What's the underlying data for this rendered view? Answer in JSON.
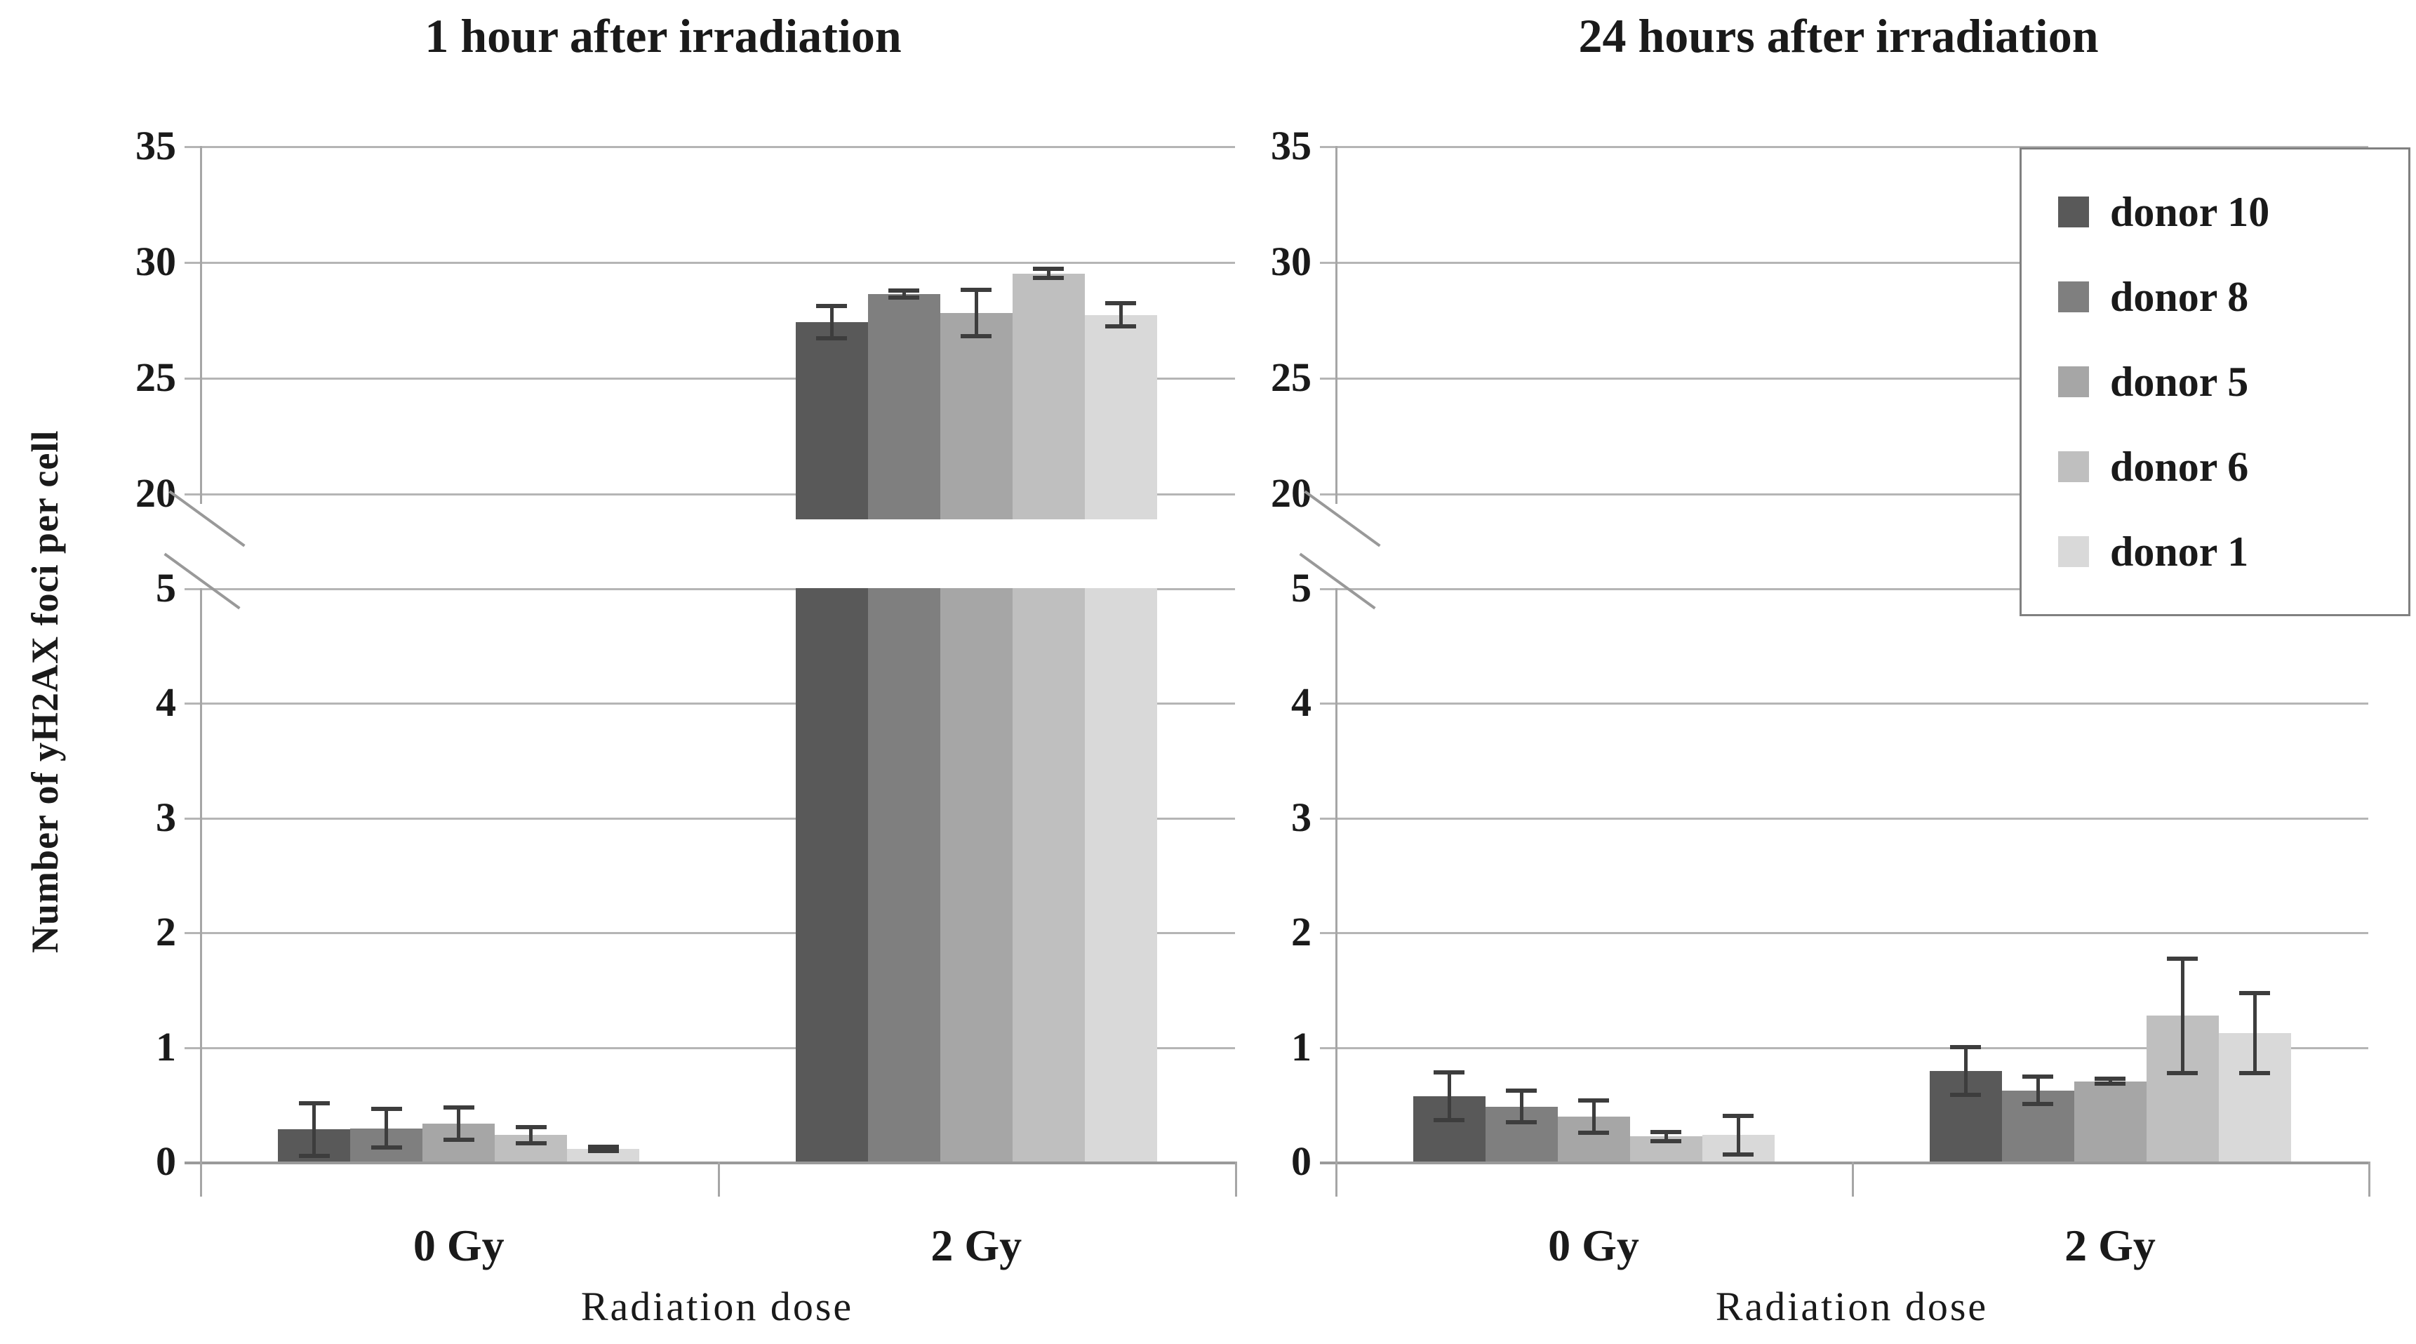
{
  "figure": {
    "y_axis_label": "Number of yH2AX foci per cell",
    "x_axis_label": "Radiation dose",
    "colors": {
      "grid": "#b5b5b5",
      "axis": "#a6a6a6",
      "error_bar": "#3d3d3d",
      "background": "#ffffff"
    }
  },
  "legend": {
    "position": "upper right",
    "items": [
      {
        "label": "donor 10",
        "color": "#595959"
      },
      {
        "label": "donor 8",
        "color": "#7f7f7f"
      },
      {
        "label": "donor 5",
        "color": "#a6a6a6"
      },
      {
        "label": "donor 6",
        "color": "#bfbfbf"
      },
      {
        "label": "donor 1",
        "color": "#d9d9d9"
      }
    ]
  },
  "chart_data": [
    {
      "type": "bar",
      "title": "1 hour after irradiation",
      "categories": [
        "0 Gy",
        "2 Gy"
      ],
      "xlabel": "Radiation dose",
      "ylabel": "Number of yH2AX foci per cell",
      "grid": true,
      "y_axis_break": {
        "lower_range": [
          0,
          5
        ],
        "upper_range": [
          20,
          35
        ]
      },
      "yticks_upper": [
        35,
        30,
        25,
        20
      ],
      "yticks_lower": [
        5,
        4,
        3,
        2,
        1,
        0
      ],
      "series": [
        {
          "name": "donor 10",
          "color": "#595959",
          "values": [
            0.28,
            27.4
          ],
          "errors": [
            0.23,
            0.7
          ]
        },
        {
          "name": "donor 8",
          "color": "#7f7f7f",
          "values": [
            0.29,
            28.6
          ],
          "errors": [
            0.17,
            0.15
          ]
        },
        {
          "name": "donor 5",
          "color": "#a6a6a6",
          "values": [
            0.33,
            27.8
          ],
          "errors": [
            0.14,
            1.0
          ]
        },
        {
          "name": "donor 6",
          "color": "#bfbfbf",
          "values": [
            0.23,
            29.5
          ],
          "errors": [
            0.07,
            0.2
          ]
        },
        {
          "name": "donor 1",
          "color": "#d9d9d9",
          "values": [
            0.11,
            27.7
          ],
          "errors": [
            0.02,
            0.5
          ]
        }
      ]
    },
    {
      "type": "bar",
      "title": "24 hours after irradiation",
      "categories": [
        "0 Gy",
        "2 Gy"
      ],
      "xlabel": "Radiation dose",
      "ylabel": "Number of yH2AX foci per cell",
      "grid": true,
      "legend_position": "upper right",
      "y_axis_break": {
        "lower_range": [
          0,
          5
        ],
        "upper_range": [
          20,
          35
        ]
      },
      "yticks_upper": [
        35,
        30,
        25,
        20
      ],
      "yticks_lower": [
        5,
        4,
        3,
        2,
        1,
        0
      ],
      "series": [
        {
          "name": "donor 10",
          "color": "#595959",
          "values": [
            0.57,
            0.79
          ],
          "errors": [
            0.21,
            0.21
          ]
        },
        {
          "name": "donor 8",
          "color": "#7f7f7f",
          "values": [
            0.48,
            0.62
          ],
          "errors": [
            0.14,
            0.12
          ]
        },
        {
          "name": "donor 5",
          "color": "#a6a6a6",
          "values": [
            0.39,
            0.7
          ],
          "errors": [
            0.14,
            0.02
          ]
        },
        {
          "name": "donor 6",
          "color": "#bfbfbf",
          "values": [
            0.22,
            1.27
          ],
          "errors": [
            0.04,
            0.5
          ]
        },
        {
          "name": "donor 1",
          "color": "#d9d9d9",
          "values": [
            0.23,
            1.12
          ],
          "errors": [
            0.17,
            0.35
          ]
        }
      ]
    }
  ]
}
